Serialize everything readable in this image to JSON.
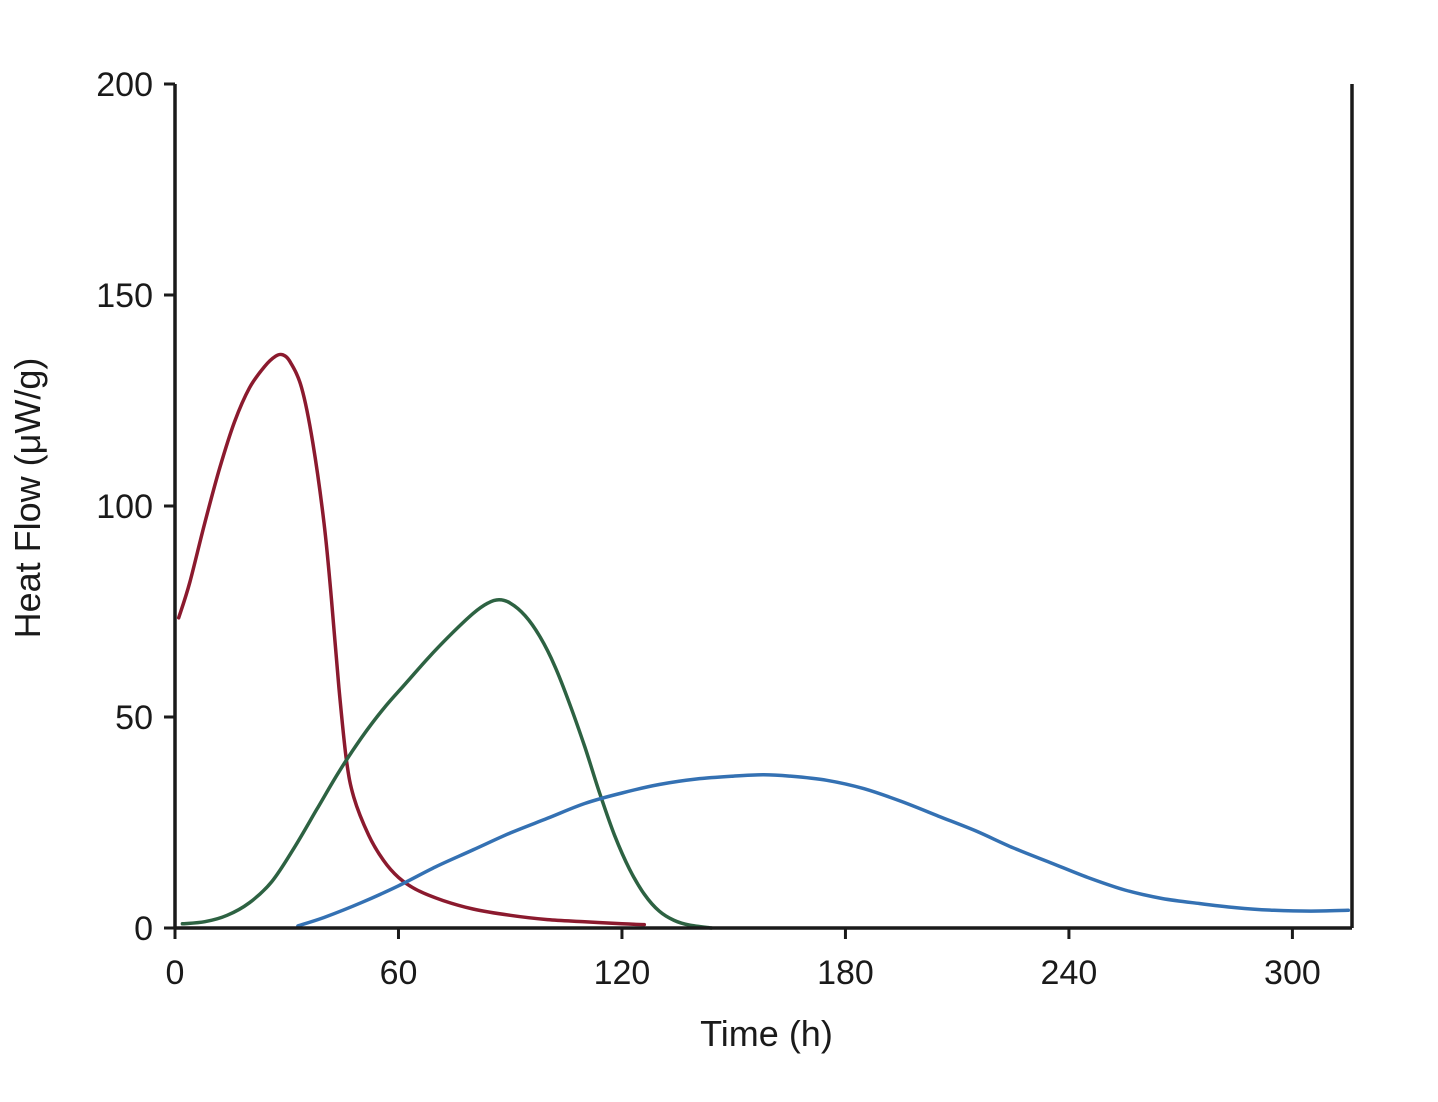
{
  "chart_data": {
    "type": "line",
    "title": "",
    "xlabel": "Time (h)",
    "ylabel": "Heat Flow (μW/g)",
    "xlim": [
      0,
      316
    ],
    "ylim": [
      0,
      200
    ],
    "x_ticks": [
      0,
      60,
      120,
      180,
      240,
      300
    ],
    "y_ticks": [
      0,
      50,
      100,
      150,
      200
    ],
    "x_tick_labels": [
      "0",
      "60",
      "120",
      "180",
      "240",
      "300"
    ],
    "y_tick_labels": [
      "0",
      "50",
      "100",
      "150",
      "200"
    ],
    "grid": false,
    "series": [
      {
        "name": "red",
        "color": "#8b1a2e",
        "points": [
          [
            1,
            73.5
          ],
          [
            4,
            82
          ],
          [
            8,
            96
          ],
          [
            12,
            109
          ],
          [
            16,
            120
          ],
          [
            20,
            128
          ],
          [
            24,
            133
          ],
          [
            27,
            135.5
          ],
          [
            29,
            135.8
          ],
          [
            31,
            134
          ],
          [
            34,
            128
          ],
          [
            37,
            115
          ],
          [
            40,
            96
          ],
          [
            42,
            78
          ],
          [
            44,
            57
          ],
          [
            46,
            40
          ],
          [
            48,
            31
          ],
          [
            52,
            22
          ],
          [
            56,
            16
          ],
          [
            60,
            12
          ],
          [
            65,
            9
          ],
          [
            72,
            6.5
          ],
          [
            80,
            4.5
          ],
          [
            90,
            3
          ],
          [
            100,
            2
          ],
          [
            110,
            1.5
          ],
          [
            120,
            1
          ],
          [
            126,
            0.8
          ]
        ]
      },
      {
        "name": "green",
        "color": "#2d6242",
        "points": [
          [
            2,
            1
          ],
          [
            8,
            1.5
          ],
          [
            14,
            3
          ],
          [
            20,
            6
          ],
          [
            26,
            11
          ],
          [
            32,
            19
          ],
          [
            38,
            28
          ],
          [
            44,
            37
          ],
          [
            50,
            45
          ],
          [
            56,
            52
          ],
          [
            62,
            58
          ],
          [
            68,
            64
          ],
          [
            74,
            69.5
          ],
          [
            80,
            74.5
          ],
          [
            84,
            77
          ],
          [
            87,
            77.8
          ],
          [
            90,
            77
          ],
          [
            94,
            74
          ],
          [
            98,
            69
          ],
          [
            102,
            62
          ],
          [
            106,
            53
          ],
          [
            110,
            43
          ],
          [
            114,
            32
          ],
          [
            118,
            22
          ],
          [
            122,
            14
          ],
          [
            126,
            8
          ],
          [
            130,
            4
          ],
          [
            134,
            1.8
          ],
          [
            138,
            0.7
          ],
          [
            144,
            0
          ]
        ]
      },
      {
        "name": "blue",
        "color": "#3471b3",
        "points": [
          [
            33,
            0.5
          ],
          [
            40,
            2.5
          ],
          [
            50,
            6
          ],
          [
            60,
            10
          ],
          [
            70,
            14.5
          ],
          [
            80,
            18.5
          ],
          [
            90,
            22.5
          ],
          [
            100,
            26
          ],
          [
            110,
            29.5
          ],
          [
            120,
            32
          ],
          [
            130,
            34
          ],
          [
            140,
            35.3
          ],
          [
            150,
            36
          ],
          [
            158,
            36.3
          ],
          [
            165,
            36
          ],
          [
            175,
            35
          ],
          [
            185,
            33
          ],
          [
            195,
            30
          ],
          [
            205,
            26.5
          ],
          [
            215,
            23
          ],
          [
            225,
            19
          ],
          [
            235,
            15.5
          ],
          [
            245,
            12
          ],
          [
            255,
            9
          ],
          [
            265,
            7
          ],
          [
            275,
            5.8
          ],
          [
            285,
            4.8
          ],
          [
            295,
            4.2
          ],
          [
            305,
            4
          ],
          [
            315,
            4.2
          ]
        ]
      }
    ]
  }
}
